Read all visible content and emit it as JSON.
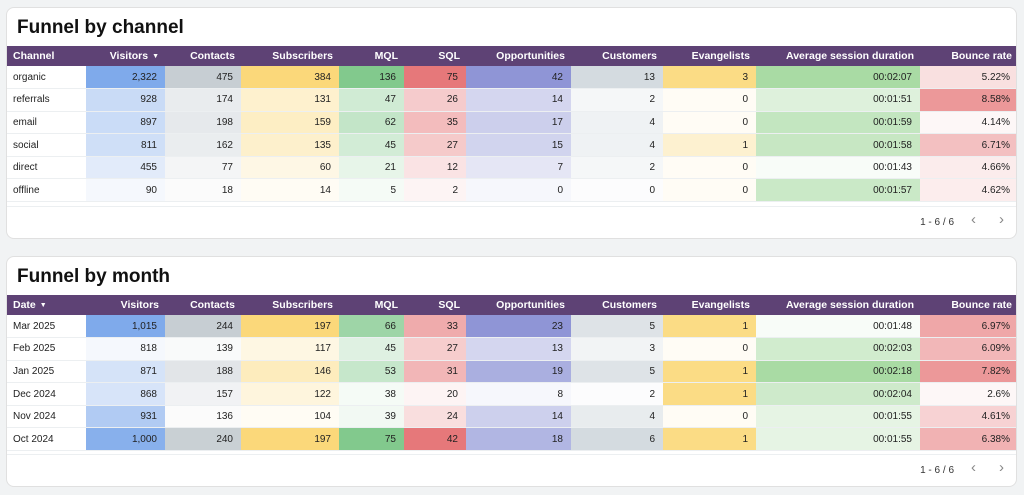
{
  "channel_table": {
    "title": "Funnel by channel",
    "sort_arrow": "▼",
    "columns": [
      "Channel",
      "Visitors",
      "Contacts",
      "Subscribers",
      "MQL",
      "SQL",
      "Opportunities",
      "Customers",
      "Evangelists",
      "Average session duration",
      "Bounce rate"
    ],
    "rows": [
      [
        "organic",
        "2,322",
        "475",
        "384",
        "136",
        "75",
        "42",
        "13",
        "3",
        "00:02:07",
        "5.22%"
      ],
      [
        "referrals",
        "928",
        "174",
        "131",
        "47",
        "26",
        "14",
        "2",
        "0",
        "00:01:51",
        "8.58%"
      ],
      [
        "email",
        "897",
        "198",
        "159",
        "62",
        "35",
        "17",
        "4",
        "0",
        "00:01:59",
        "4.14%"
      ],
      [
        "social",
        "811",
        "162",
        "135",
        "45",
        "27",
        "15",
        "4",
        "1",
        "00:01:58",
        "6.71%"
      ],
      [
        "direct",
        "455",
        "77",
        "60",
        "21",
        "12",
        "7",
        "2",
        "0",
        "00:01:43",
        "4.66%"
      ],
      [
        "offline",
        "90",
        "18",
        "14",
        "5",
        "2",
        "0",
        "0",
        "0",
        "00:01:57",
        "4.62%"
      ]
    ],
    "pagination": {
      "range": "1 - 6 / 6",
      "prev": "‹",
      "next": "›"
    }
  },
  "month_table": {
    "title": "Funnel by month",
    "sort_arrow": "▼",
    "columns": [
      "Date",
      "Visitors",
      "Contacts",
      "Subscribers",
      "MQL",
      "SQL",
      "Opportunities",
      "Customers",
      "Evangelists",
      "Average session duration",
      "Bounce rate"
    ],
    "rows": [
      [
        "Mar 2025",
        "1,015",
        "244",
        "197",
        "66",
        "33",
        "23",
        "5",
        "1",
        "00:01:48",
        "6.97%"
      ],
      [
        "Feb 2025",
        "818",
        "139",
        "117",
        "45",
        "27",
        "13",
        "3",
        "0",
        "00:02:03",
        "6.09%"
      ],
      [
        "Jan 2025",
        "871",
        "188",
        "146",
        "53",
        "31",
        "19",
        "5",
        "1",
        "00:02:18",
        "7.82%"
      ],
      [
        "Dec 2024",
        "868",
        "157",
        "122",
        "38",
        "20",
        "8",
        "2",
        "1",
        "00:02:04",
        "2.6%"
      ],
      [
        "Nov 2024",
        "931",
        "136",
        "104",
        "39",
        "24",
        "14",
        "4",
        "0",
        "00:01:55",
        "4.61%"
      ],
      [
        "Oct 2024",
        "1,000",
        "240",
        "197",
        "75",
        "42",
        "18",
        "6",
        "1",
        "00:01:55",
        "6.38%"
      ]
    ],
    "pagination": {
      "range": "1 - 6 / 6",
      "prev": "‹",
      "next": "›"
    }
  },
  "heatmap_colors": {
    "Visitors": "#7faaeb",
    "Contacts": "#c7ced3",
    "Subscribers": "#fbd87a",
    "MQL": "#82c98d",
    "SQL": "#e6787a",
    "Opportunities": "#8f95d6",
    "Customers": "#d4dbe0",
    "Evangelists": "#fbdc85",
    "Average session duration": "#a9dba4",
    "Bounce rate": "#ec9899"
  }
}
